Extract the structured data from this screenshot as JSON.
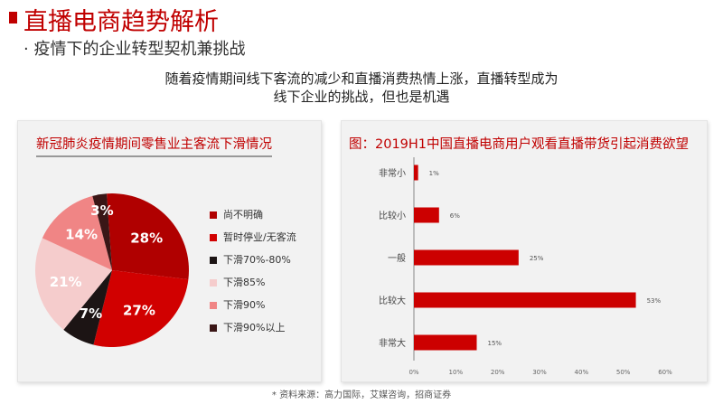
{
  "header": {
    "title": "直播电商趋势解析",
    "subtitle": "· 疫情下的企业转型契机兼挑战",
    "intro_line1": "随着疫情期间线下客流的减少和直播消费热情上涨，直播转型成为",
    "intro_line2": "线下企业的挑战，但也是机遇"
  },
  "colors": {
    "accent": "#c00000"
  },
  "chart_data": [
    {
      "type": "pie",
      "title": "新冠肺炎疫情期间零售业主客流下滑情况",
      "labels": [
        "尚不明确",
        "暂时停业/无客流",
        "下滑70%-80%",
        "下滑85%",
        "下滑90%",
        "下滑90%以上"
      ],
      "values": [
        28,
        27,
        7,
        21,
        14,
        3
      ],
      "value_labels": [
        "28%",
        "27%",
        "7%",
        "21%",
        "14%",
        "3%"
      ],
      "colors": [
        "#b00000",
        "#d10000",
        "#1c1414",
        "#f5cccc",
        "#f08585",
        "#3a1616"
      ],
      "legend_position": "right"
    },
    {
      "type": "bar",
      "orientation": "horizontal",
      "title": "图：2019H1中国直播电商用户观看直播带货引起消费欲望",
      "categories": [
        "非常小",
        "比较小",
        "一般",
        "比较大",
        "非常大"
      ],
      "values": [
        1,
        6,
        25,
        53,
        15
      ],
      "value_labels": [
        "1%",
        "6%",
        "25%",
        "53%",
        "15%"
      ],
      "xlim": [
        0,
        60
      ],
      "xticks": [
        "0%",
        "10%",
        "20%",
        "30%",
        "40%",
        "50%",
        "60%"
      ],
      "color": "#cc0000"
    }
  ],
  "footer": {
    "source": "* 资料来源：高力国际，艾媒咨询，招商证券"
  }
}
